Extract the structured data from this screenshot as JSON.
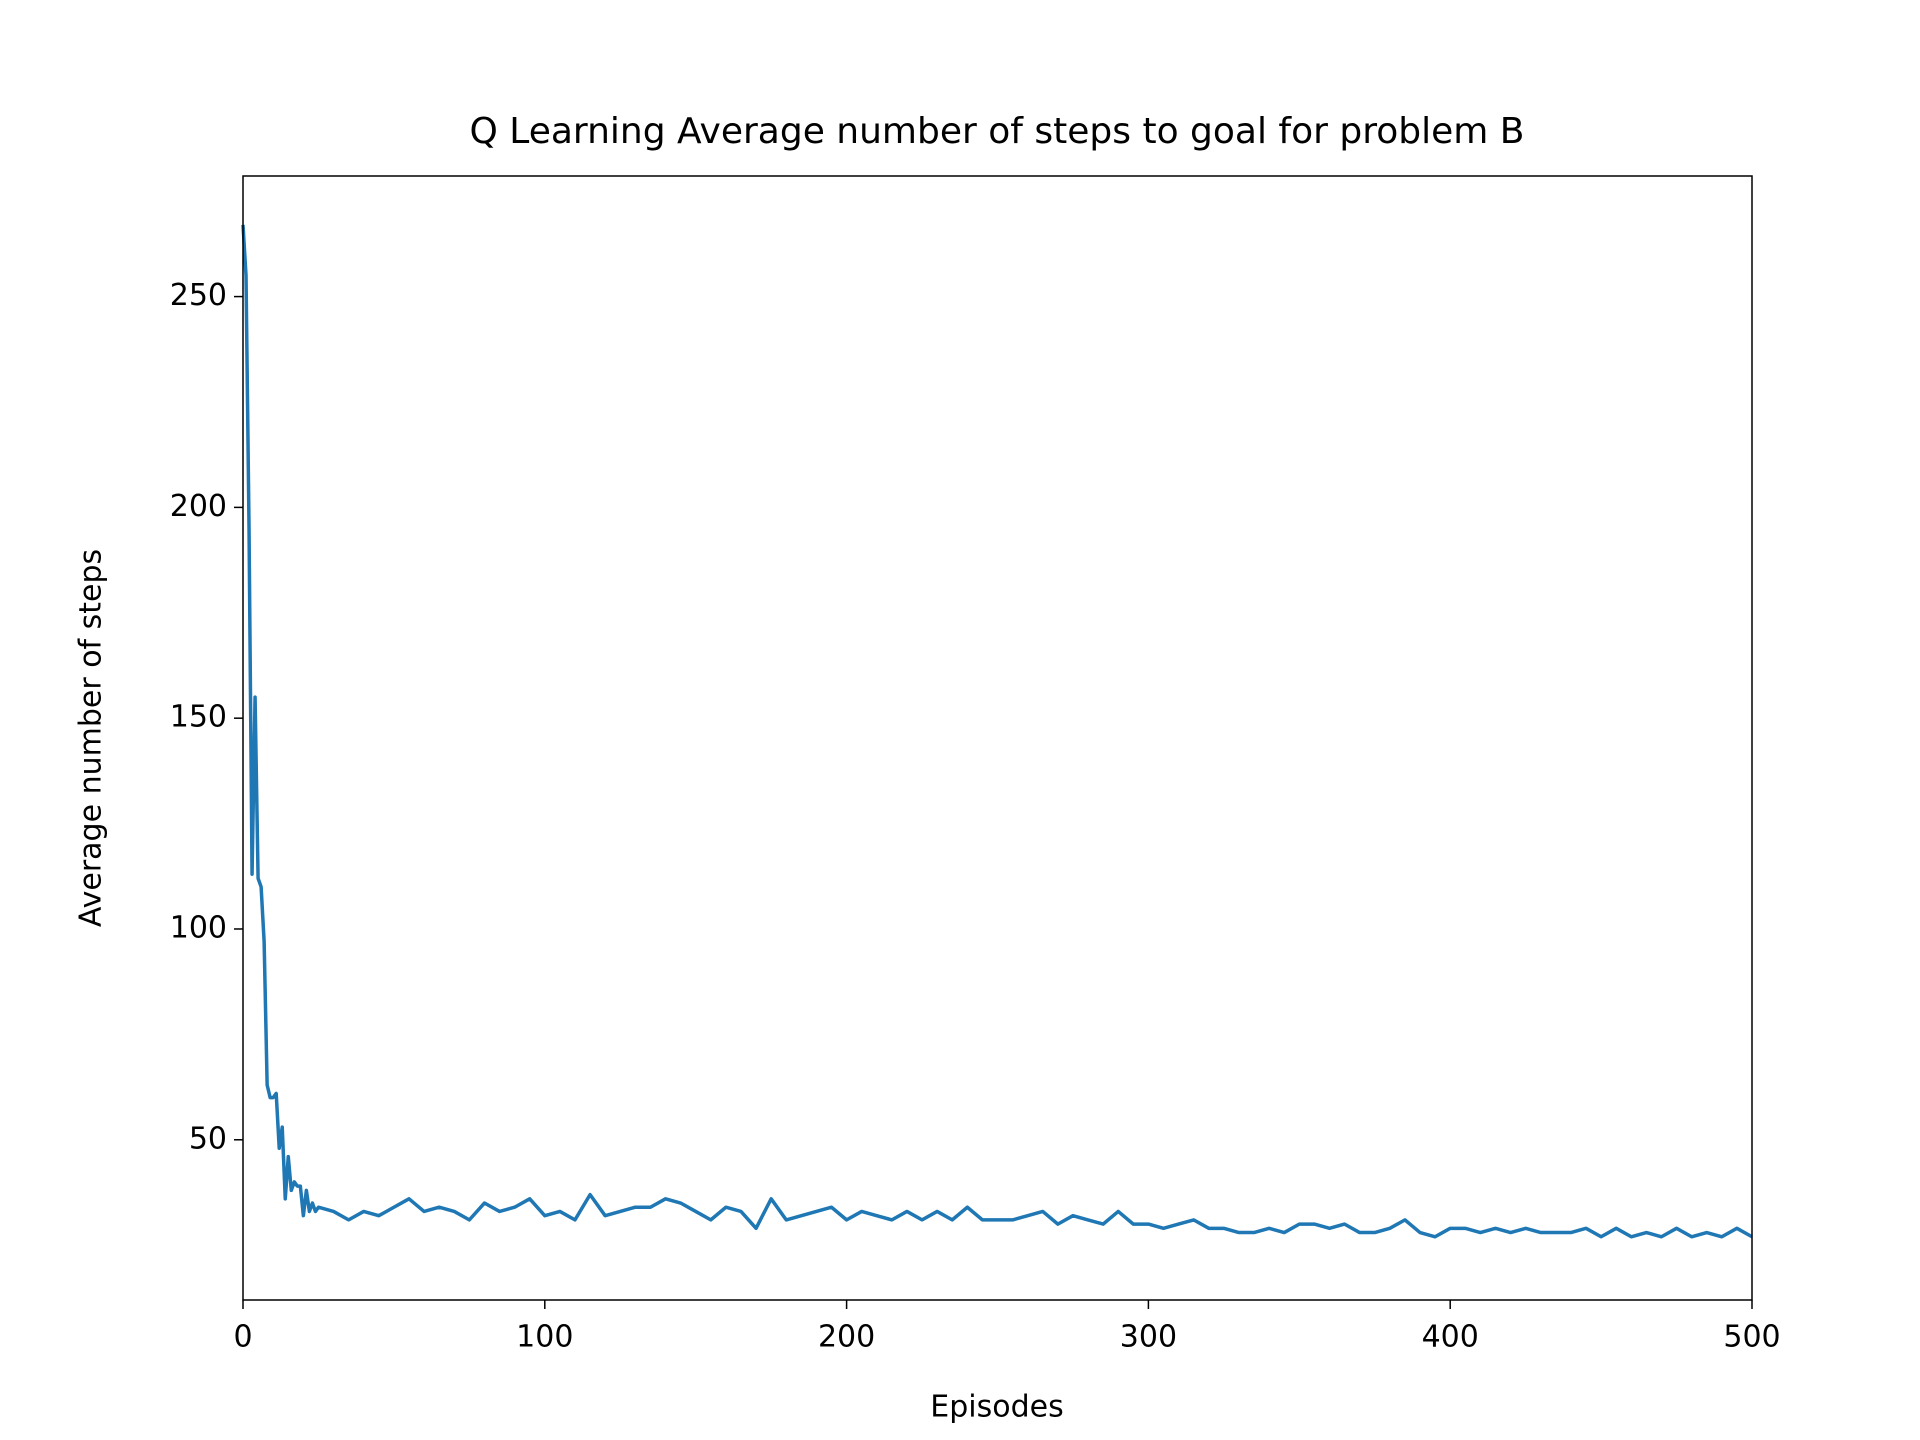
{
  "chart_data": {
    "type": "line",
    "title": "Q Learning Average number of steps to goal for problem B",
    "x_label": "Episodes",
    "y_label": "Average number of steps",
    "x": [
      0,
      1,
      2,
      3,
      4,
      5,
      6,
      7,
      8,
      9,
      10,
      11,
      12,
      13,
      14,
      15,
      16,
      17,
      18,
      19,
      20,
      21,
      22,
      23,
      24,
      25,
      30,
      35,
      40,
      45,
      50,
      55,
      60,
      65,
      70,
      75,
      80,
      85,
      90,
      95,
      100,
      105,
      110,
      115,
      120,
      125,
      130,
      135,
      140,
      145,
      150,
      155,
      160,
      165,
      170,
      175,
      180,
      185,
      190,
      195,
      200,
      205,
      210,
      215,
      220,
      225,
      230,
      235,
      240,
      245,
      250,
      255,
      260,
      265,
      270,
      275,
      280,
      285,
      290,
      295,
      300,
      305,
      310,
      315,
      320,
      325,
      330,
      335,
      340,
      345,
      350,
      355,
      360,
      365,
      370,
      375,
      380,
      385,
      390,
      395,
      400,
      405,
      410,
      415,
      420,
      425,
      430,
      435,
      440,
      445,
      450,
      455,
      460,
      465,
      470,
      475,
      480,
      485,
      490,
      495,
      500
    ],
    "series": [
      {
        "name": "Q Learning",
        "color": "#1f77b4",
        "values": [
          267,
          255,
          195,
          113,
          155,
          112,
          110,
          97,
          63,
          60,
          60,
          61,
          48,
          53,
          36,
          46,
          38,
          40,
          39,
          39,
          32,
          38,
          33,
          35,
          33,
          34,
          33,
          31,
          33,
          32,
          34,
          36,
          33,
          34,
          33,
          31,
          35,
          33,
          34,
          36,
          32,
          33,
          31,
          37,
          32,
          33,
          34,
          34,
          36,
          35,
          33,
          31,
          34,
          33,
          29,
          36,
          31,
          32,
          33,
          34,
          31,
          33,
          32,
          31,
          33,
          31,
          33,
          31,
          34,
          31,
          31,
          31,
          32,
          33,
          30,
          32,
          31,
          30,
          33,
          30,
          30,
          29,
          30,
          31,
          29,
          29,
          28,
          28,
          29,
          28,
          30,
          30,
          29,
          30,
          28,
          28,
          29,
          31,
          28,
          27,
          29,
          29,
          28,
          29,
          28,
          29,
          28,
          28,
          28,
          29,
          27,
          29,
          27,
          28,
          27,
          29,
          27,
          28,
          27,
          29,
          27
        ]
      }
    ],
    "xlim": [
      0,
      500
    ],
    "ylim": [
      12,
      278.6
    ],
    "xticks": [
      0,
      100,
      200,
      300,
      400,
      500
    ],
    "yticks": [
      50,
      100,
      150,
      200,
      250
    ]
  }
}
